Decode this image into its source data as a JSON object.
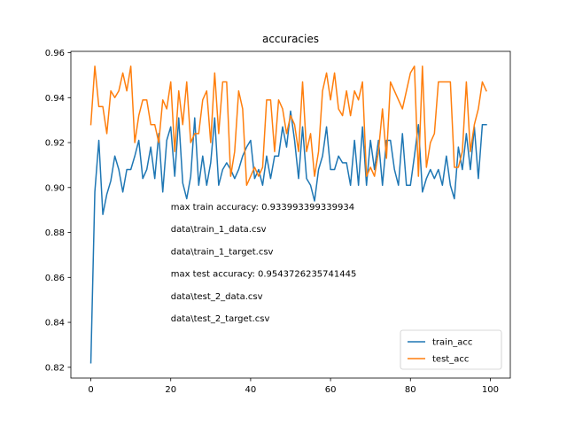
{
  "chart_data": {
    "type": "line",
    "title": "accuracies",
    "xlabel": "",
    "ylabel": "",
    "xlim": [
      -5,
      105
    ],
    "ylim": [
      0.8152,
      0.9606
    ],
    "xticks": [
      0,
      20,
      40,
      60,
      80,
      100
    ],
    "yticks": [
      0.82,
      0.84,
      0.86,
      0.88,
      0.9,
      0.92,
      0.94,
      0.96
    ],
    "grid": false,
    "legend_position": "lower-right",
    "x": [
      0,
      1,
      2,
      3,
      4,
      5,
      6,
      7,
      8,
      9,
      10,
      11,
      12,
      13,
      14,
      15,
      16,
      17,
      18,
      19,
      20,
      21,
      22,
      23,
      24,
      25,
      26,
      27,
      28,
      29,
      30,
      31,
      32,
      33,
      34,
      35,
      36,
      37,
      38,
      39,
      40,
      41,
      42,
      43,
      44,
      45,
      46,
      47,
      48,
      49,
      50,
      51,
      52,
      53,
      54,
      55,
      56,
      57,
      58,
      59,
      60,
      61,
      62,
      63,
      64,
      65,
      66,
      67,
      68,
      69,
      70,
      71,
      72,
      73,
      74,
      75,
      76,
      77,
      78,
      79,
      80,
      81,
      82,
      83,
      84,
      85,
      86,
      87,
      88,
      89,
      90,
      91,
      92,
      93,
      94,
      95,
      96,
      97,
      98,
      99
    ],
    "series": [
      {
        "name": "train_acc",
        "color": "#1f77b4",
        "values": [
          0.822,
          0.898,
          0.921,
          0.888,
          0.897,
          0.903,
          0.914,
          0.908,
          0.898,
          0.908,
          0.908,
          0.914,
          0.921,
          0.904,
          0.908,
          0.918,
          0.904,
          0.924,
          0.898,
          0.921,
          0.927,
          0.905,
          0.931,
          0.902,
          0.895,
          0.905,
          0.931,
          0.901,
          0.914,
          0.901,
          0.911,
          0.931,
          0.901,
          0.908,
          0.911,
          0.908,
          0.904,
          0.908,
          0.914,
          0.918,
          0.921,
          0.904,
          0.908,
          0.901,
          0.914,
          0.904,
          0.914,
          0.914,
          0.927,
          0.918,
          0.934,
          0.921,
          0.904,
          0.927,
          0.904,
          0.901,
          0.894,
          0.908,
          0.914,
          0.927,
          0.908,
          0.908,
          0.914,
          0.911,
          0.911,
          0.901,
          0.921,
          0.901,
          0.927,
          0.901,
          0.921,
          0.908,
          0.921,
          0.901,
          0.921,
          0.921,
          0.908,
          0.901,
          0.924,
          0.901,
          0.901,
          0.914,
          0.928,
          0.898,
          0.904,
          0.908,
          0.904,
          0.908,
          0.901,
          0.914,
          0.901,
          0.895,
          0.918,
          0.908,
          0.924,
          0.908,
          0.927,
          0.904,
          0.928,
          0.928
        ]
      },
      {
        "name": "test_acc",
        "color": "#ff7f0e",
        "values": [
          0.928,
          0.954,
          0.936,
          0.936,
          0.924,
          0.943,
          0.94,
          0.943,
          0.951,
          0.943,
          0.954,
          0.92,
          0.932,
          0.939,
          0.939,
          0.928,
          0.928,
          0.92,
          0.939,
          0.935,
          0.947,
          0.916,
          0.943,
          0.928,
          0.947,
          0.92,
          0.924,
          0.924,
          0.939,
          0.943,
          0.92,
          0.951,
          0.924,
          0.947,
          0.947,
          0.905,
          0.916,
          0.943,
          0.935,
          0.901,
          0.905,
          0.909,
          0.905,
          0.909,
          0.939,
          0.939,
          0.916,
          0.939,
          0.935,
          0.924,
          0.932,
          0.928,
          0.916,
          0.947,
          0.916,
          0.924,
          0.905,
          0.916,
          0.943,
          0.951,
          0.939,
          0.951,
          0.935,
          0.932,
          0.943,
          0.932,
          0.943,
          0.939,
          0.947,
          0.905,
          0.909,
          0.905,
          0.916,
          0.935,
          0.913,
          0.947,
          0.943,
          0.939,
          0.935,
          0.943,
          0.951,
          0.954,
          0.905,
          0.954,
          0.909,
          0.92,
          0.924,
          0.947,
          0.947,
          0.947,
          0.947,
          0.909,
          0.909,
          0.916,
          0.947,
          0.916,
          0.928,
          0.935,
          0.947,
          0.943
        ]
      }
    ],
    "annotations": [
      "max train accuracy: 0.933993399339934",
      "data\\train_1_data.csv",
      "data\\train_1_target.csv",
      "max test accuracy: 0.9543726235741445",
      "data\\test_2_data.csv",
      "data\\test_2_target.csv"
    ]
  }
}
